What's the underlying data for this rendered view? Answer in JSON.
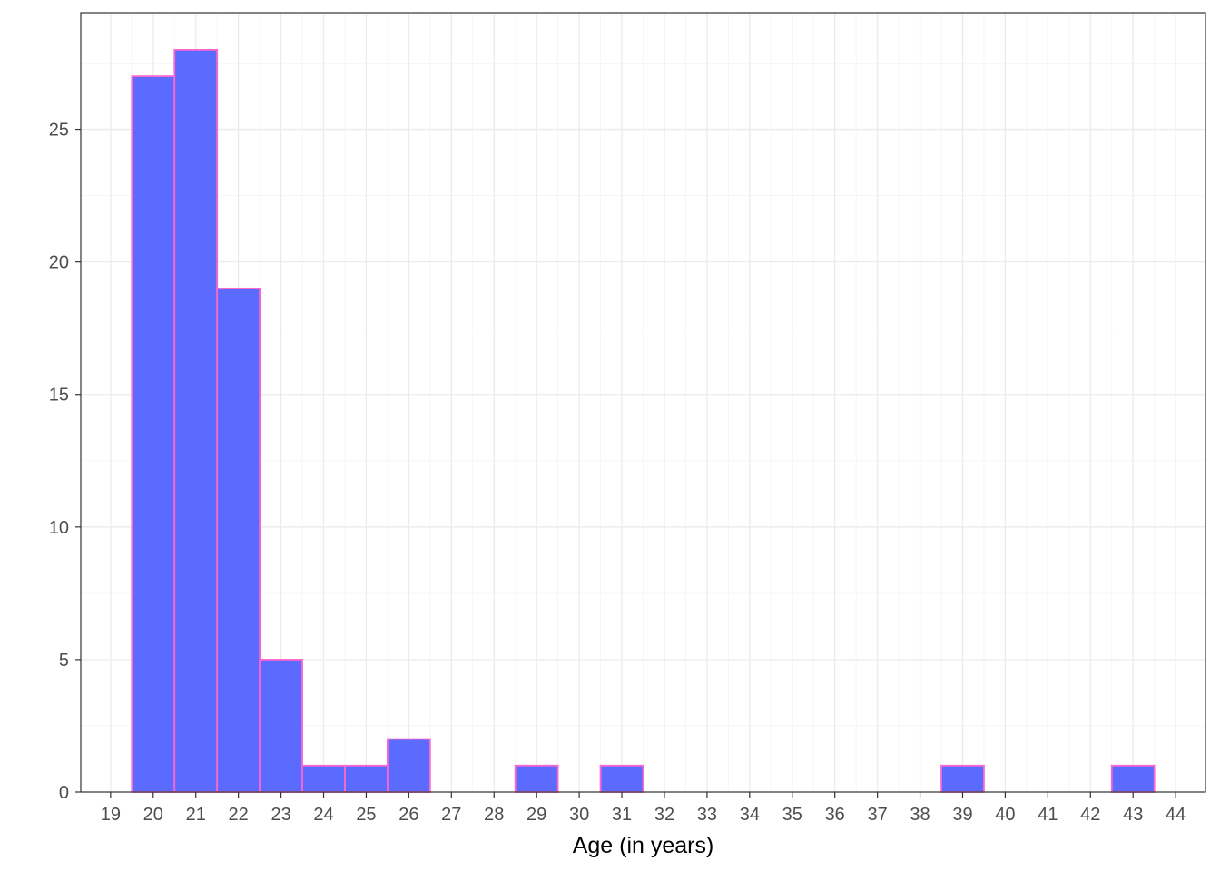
{
  "chart_data": {
    "type": "histogram",
    "title": "",
    "xlabel": "Age (in years)",
    "ylabel": "",
    "binwidth": 1,
    "bins": [
      {
        "center": 20,
        "count": 27
      },
      {
        "center": 21,
        "count": 28
      },
      {
        "center": 22,
        "count": 19
      },
      {
        "center": 23,
        "count": 5
      },
      {
        "center": 24,
        "count": 1
      },
      {
        "center": 25,
        "count": 1
      },
      {
        "center": 26,
        "count": 2
      },
      {
        "center": 29,
        "count": 1
      },
      {
        "center": 31,
        "count": 1
      },
      {
        "center": 39,
        "count": 1
      },
      {
        "center": 43,
        "count": 1
      }
    ],
    "xlim": [
      18.3,
      44.7
    ],
    "ylim": [
      0,
      29.4
    ],
    "x_ticks": [
      19,
      20,
      21,
      22,
      23,
      24,
      25,
      26,
      27,
      28,
      29,
      30,
      31,
      32,
      33,
      34,
      35,
      36,
      37,
      38,
      39,
      40,
      41,
      42,
      43,
      44
    ],
    "y_ticks": [
      0,
      5,
      10,
      15,
      20,
      25
    ],
    "y_minor_ticks": [
      2.5,
      7.5,
      12.5,
      17.5,
      22.5,
      27.5
    ],
    "grid": true,
    "colors": {
      "bar_fill": "#5b6bff",
      "bar_outline": "#ff66cc",
      "grid_major": "#ebebeb",
      "grid_minor": "#f4f4f4",
      "panel_border": "#333333",
      "tick_label": "#4d4d4d",
      "axis_title": "#000000"
    }
  }
}
